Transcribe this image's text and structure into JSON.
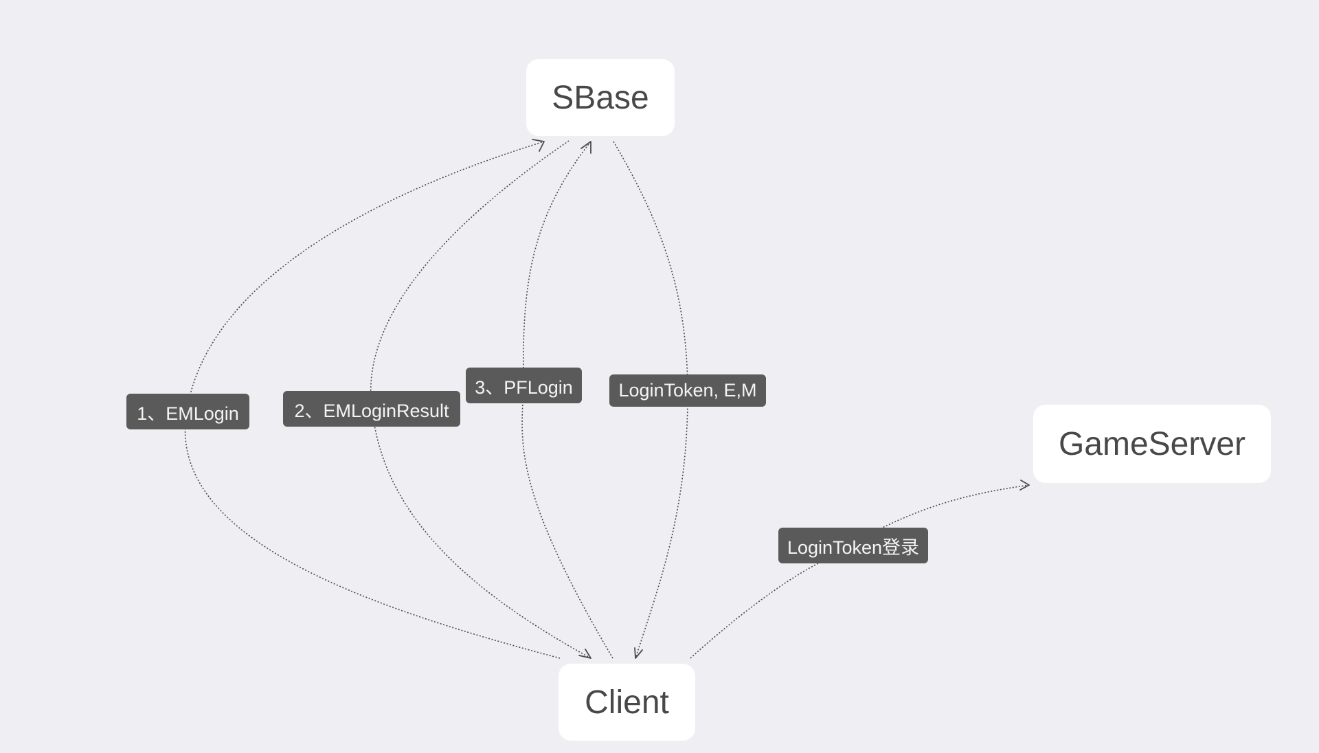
{
  "nodes": {
    "sbase": "SBase",
    "client": "Client",
    "gameserver": "GameServer"
  },
  "edges": {
    "em_login": "1、EMLogin",
    "em_login_result": "2、EMLoginResult",
    "pf_login": "3、PFLogin",
    "login_token_em": "LoginToken, E,M",
    "login_token_game": "LoginToken登录"
  },
  "colors": {
    "background": "#efeef3",
    "node_fill": "#ffffff",
    "node_text": "#484848",
    "label_fill": "#5a5a5a",
    "label_text": "#f4f4f4",
    "edge_stroke": "#4a4a4a"
  }
}
